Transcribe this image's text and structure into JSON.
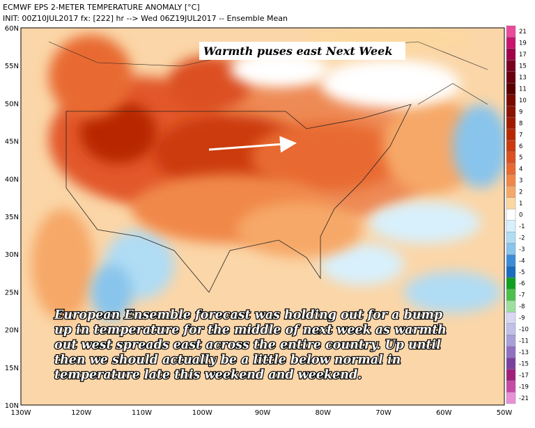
{
  "header": {
    "title": "ECMWF EPS 2-METER TEMPERATURE ANOMALY [°C]",
    "subtitle": "INIT: 00Z10JUL2017 fx: [222] hr --> Wed 06Z19JUL2017 -- Ensemble Mean"
  },
  "map": {
    "lat_labels": [
      "60N",
      "55N",
      "50N",
      "45N",
      "40N",
      "35N",
      "30N",
      "25N",
      "20N",
      "15N",
      "10N"
    ],
    "lon_labels": [
      "130W",
      "120W",
      "110W",
      "100W",
      "90W",
      "80W",
      "70W",
      "60W",
      "50W"
    ]
  },
  "colorbar": {
    "ticks": [
      21,
      19,
      17,
      15,
      13,
      11,
      10,
      9,
      8,
      7,
      6,
      5,
      4,
      3,
      2,
      1,
      0,
      -1,
      -2,
      -3,
      -4,
      -5,
      -6,
      -7,
      -8,
      -9,
      -10,
      -11,
      -13,
      -15,
      -17,
      -19,
      -21
    ],
    "colors": [
      "#e94a9a",
      "#c8146e",
      "#a0004a",
      "#7a0020",
      "#6a0010",
      "#5a0000",
      "#7a0a00",
      "#8c1200",
      "#a01a00",
      "#b82800",
      "#cc3a10",
      "#dc5020",
      "#e86a30",
      "#f08848",
      "#f6a868",
      "#fcd8a0",
      "#ffffff",
      "#d8f0fc",
      "#b0dcf4",
      "#88c4ec",
      "#3a8cd8",
      "#1a6cc0",
      "#10a020",
      "#4cc04c",
      "#9ce09c",
      "#d8d8f4",
      "#c0c0e8",
      "#a8a0d8",
      "#9070c0",
      "#7a40a0",
      "#a0207a",
      "#c84aa8",
      "#e890d8"
    ]
  },
  "annotations": {
    "headline": "Warmth puses east Next Week",
    "body": [
      "European Ensemble forecast was holding out for a bump",
      "up in temperature for the middle of next week as warmth",
      "out west spreads east across the entire country. Up until",
      "then we should actually be a little below normal in",
      "temperature late this weekend and weekend."
    ]
  }
}
